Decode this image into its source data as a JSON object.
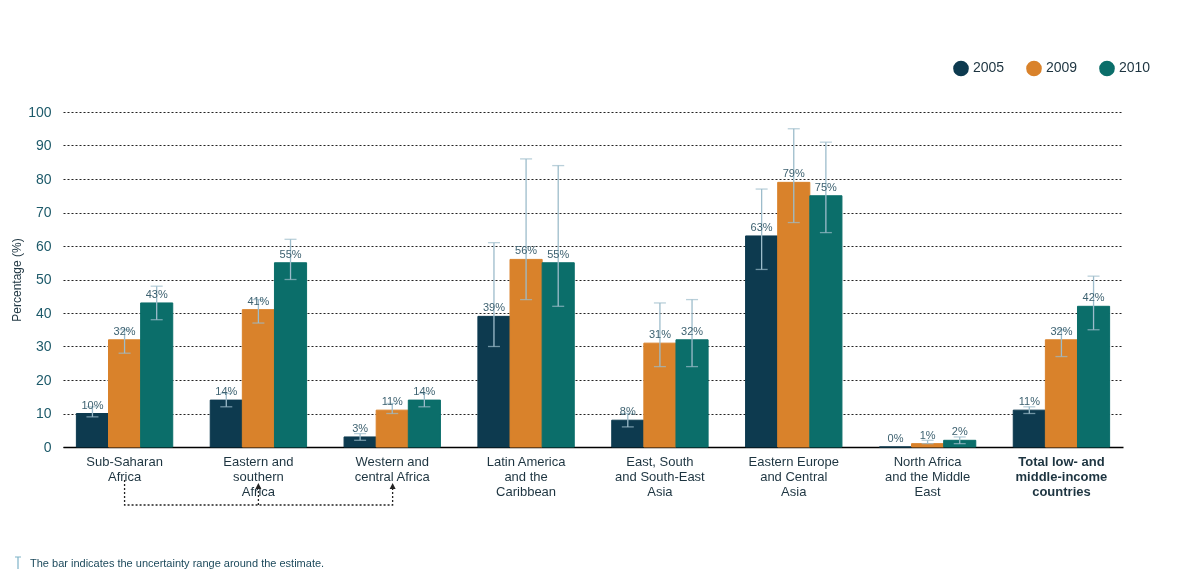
{
  "chart_data": {
    "type": "bar",
    "categories": [
      "Sub-Saharan Africa",
      "Eastern and southern Africa",
      "Western and central Africa",
      "Latin America and the Caribbean",
      "East, South and South-East Asia",
      "Eastern Europe and Central Asia",
      "North Africa and the Middle East",
      "Total low- and middle-income countries"
    ],
    "series": [
      {
        "name": "2005",
        "color": "#0d3a4f",
        "values": [
          10,
          14,
          3,
          39,
          8,
          63,
          0,
          11
        ],
        "value_labels": [
          "10%",
          "14%",
          "3%",
          "39%",
          "8%",
          "63%",
          "0%",
          "11%"
        ],
        "errors": [
          [
            9,
            12
          ],
          [
            12,
            16
          ],
          [
            2,
            4
          ],
          [
            30,
            61
          ],
          [
            6,
            10
          ],
          [
            53,
            77
          ],
          null,
          [
            10,
            12
          ]
        ]
      },
      {
        "name": "2009",
        "color": "#d9822b",
        "values": [
          32,
          41,
          11,
          56,
          31,
          79,
          1,
          32
        ],
        "value_labels": [
          "32%",
          "41%",
          "11%",
          "56%",
          "31%",
          "79%",
          "1%",
          "32%"
        ],
        "errors": [
          [
            28,
            35
          ],
          [
            37,
            44
          ],
          [
            10,
            13
          ],
          [
            44,
            86
          ],
          [
            24,
            43
          ],
          [
            67,
            95
          ],
          [
            1,
            2
          ],
          [
            27,
            35
          ]
        ]
      },
      {
        "name": "2010",
        "color": "#0b6e6a",
        "values": [
          43,
          55,
          14,
          55,
          32,
          75,
          2,
          42
        ],
        "value_labels": [
          "43%",
          "55%",
          "14%",
          "55%",
          "32%",
          "75%",
          "2%",
          "42%"
        ],
        "errors": [
          [
            38,
            48
          ],
          [
            50,
            62
          ],
          [
            12,
            16
          ],
          [
            42,
            84
          ],
          [
            24,
            44
          ],
          [
            64,
            91
          ],
          [
            1,
            3
          ],
          [
            35,
            51
          ]
        ]
      }
    ],
    "ylabel": "Percentage (%)",
    "ylim": [
      0,
      100
    ],
    "yticks": [
      0,
      10,
      20,
      30,
      40,
      50,
      60,
      70,
      80,
      90,
      100
    ],
    "grid": "y",
    "legend": "top right",
    "annotations": [
      "The bar indicates the uncertainty range around the estimate."
    ]
  }
}
